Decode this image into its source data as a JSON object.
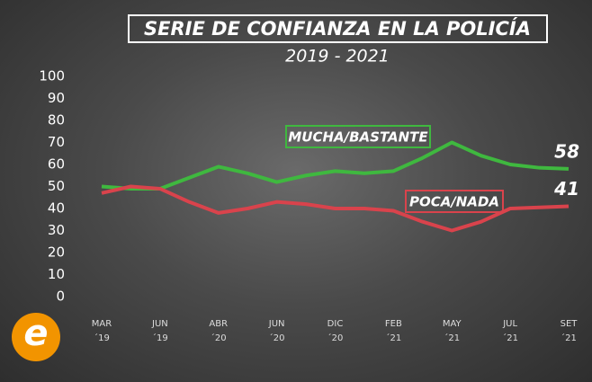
{
  "chart_data": {
    "type": "line",
    "title": "SERIE DE CONFIANZA EN LA POLICÍA",
    "subtitle": "2019 - 2021",
    "categories": [
      "MAR ´19",
      null,
      "JUN ´19",
      null,
      "ABR ´20",
      null,
      "JUN ´20",
      null,
      "DIC ´20",
      null,
      "FEB ´21",
      null,
      "MAY ´21",
      null,
      "JUL ´21",
      null,
      "SET ´21"
    ],
    "series": [
      {
        "name": "MUCHA/BASTANTE",
        "color": "#3fb83f",
        "values": [
          50,
          49,
          49,
          54,
          59,
          56,
          52,
          55,
          57,
          56,
          57,
          63,
          70,
          64,
          60,
          58.5,
          58
        ]
      },
      {
        "name": "POCA/NADA",
        "color": "#d9434c",
        "values": [
          47,
          50,
          49,
          43,
          38,
          40,
          43,
          42,
          40,
          40,
          39,
          34,
          30,
          34,
          40,
          40.5,
          41
        ]
      }
    ],
    "ylim": [
      0,
      100
    ],
    "yticks": [
      0,
      10,
      20,
      30,
      40,
      50,
      60,
      70,
      80,
      90,
      100
    ],
    "logo": "e"
  }
}
